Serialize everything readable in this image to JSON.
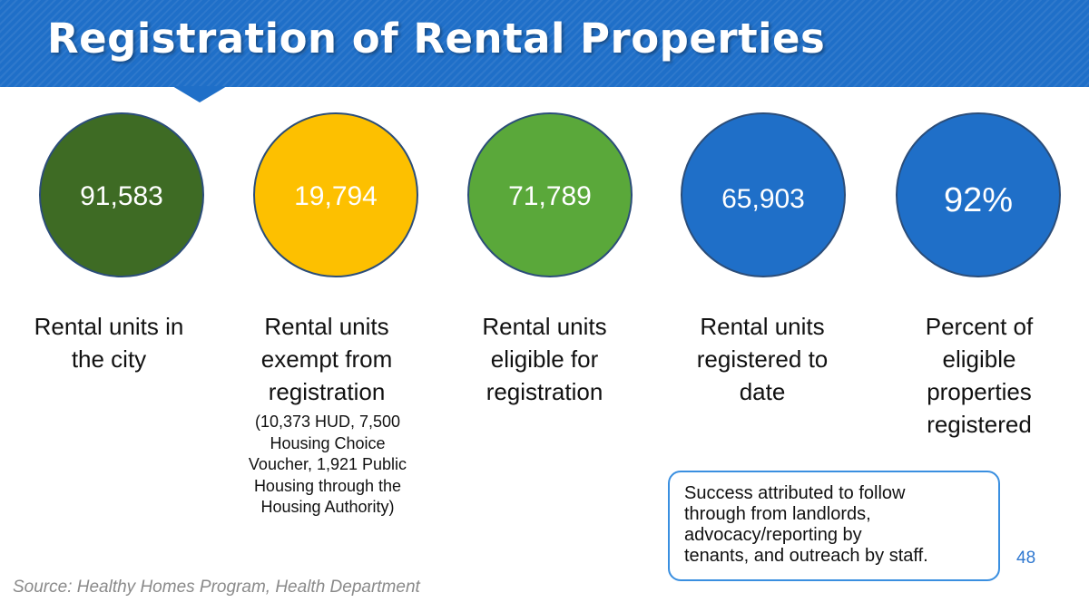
{
  "slide": {
    "title": "Registration of Rental Properties",
    "stats": [
      {
        "value": "91,583",
        "color": "#3e6b24",
        "label_lines": [
          "Rental units in",
          "the city"
        ]
      },
      {
        "value": "19,794",
        "color": "#fdc000",
        "label_lines": [
          "Rental units",
          "exempt from",
          "registration"
        ],
        "note_lines": [
          "(10,373 HUD, 7,500",
          "Housing Choice",
          "Voucher, 1,921 Public",
          "Housing through the",
          "Housing Authority)"
        ]
      },
      {
        "value": "71,789",
        "color": "#5aa83a",
        "label_lines": [
          "Rental units",
          "eligible for",
          "registration"
        ]
      },
      {
        "value": "65,903",
        "color": "#1f6fc8",
        "label_lines": [
          "Rental units",
          "registered to",
          "date"
        ]
      },
      {
        "value": "92%",
        "color": "#1f6fc8",
        "label_lines": [
          "Percent of",
          "eligible",
          "properties",
          "registered"
        ]
      }
    ],
    "callout_lines": [
      "Success attributed to follow",
      "through from landlords,",
      "advocacy/reporting by",
      "tenants, and outreach by staff."
    ],
    "page_number": "48",
    "source": "Source: Healthy Homes Program, Health Department"
  },
  "colors": {
    "banner": "#1f6fc8",
    "callout_border": "#3a8fe0",
    "source_text": "#8a8a8a"
  }
}
